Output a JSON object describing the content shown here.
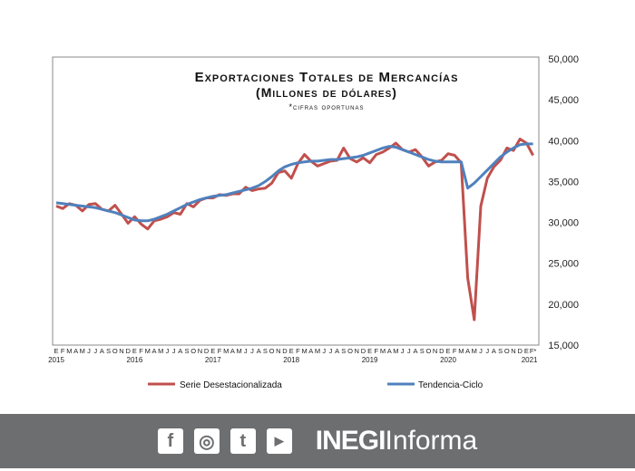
{
  "chart_data": {
    "type": "line",
    "title": "Exportaciones Totales de Mercancías",
    "subtitle": "(Millones de dólares)",
    "note": "*cifras oportunas",
    "month_labels": [
      "E",
      "F",
      "M",
      "A",
      "M",
      "J",
      "J",
      "A",
      "S",
      "O",
      "N",
      "D",
      "E",
      "F",
      "M",
      "A",
      "M",
      "J",
      "J",
      "A",
      "S",
      "O",
      "N",
      "D",
      "E",
      "F",
      "M",
      "A",
      "M",
      "J",
      "J",
      "A",
      "S",
      "O",
      "N",
      "D",
      "E",
      "F",
      "M",
      "A",
      "M",
      "J",
      "J",
      "A",
      "S",
      "O",
      "N",
      "D",
      "E",
      "F",
      "M",
      "A",
      "M",
      "J",
      "J",
      "A",
      "S",
      "O",
      "N",
      "D",
      "E",
      "F",
      "M",
      "A",
      "M",
      "J",
      "J",
      "A",
      "S",
      "O",
      "N",
      "D",
      "E",
      "F*"
    ],
    "year_labels": [
      "2015",
      "2016",
      "2017",
      "2018",
      "2019",
      "2020",
      "2021"
    ],
    "yticks": [
      "15,000",
      "20,000",
      "25,000",
      "30,000",
      "35,000",
      "40,000",
      "45,000",
      "50,000"
    ],
    "ylim": [
      15000,
      50000
    ],
    "legend_position": "bottom",
    "series": [
      {
        "name": "Serie Desestacionalizada",
        "color": "#c0504d",
        "values": [
          32000,
          31700,
          32300,
          32100,
          31400,
          32200,
          32300,
          31600,
          31400,
          32100,
          31000,
          29900,
          30700,
          29800,
          29200,
          30200,
          30400,
          30700,
          31200,
          31000,
          32300,
          31900,
          32700,
          33000,
          33000,
          33400,
          33300,
          33500,
          33500,
          34300,
          33900,
          34100,
          34200,
          34800,
          36100,
          36300,
          35400,
          37200,
          38300,
          37500,
          36900,
          37200,
          37500,
          37600,
          39100,
          37800,
          37400,
          37900,
          37300,
          38300,
          38600,
          39100,
          39700,
          38900,
          38600,
          38900,
          38000,
          36900,
          37400,
          37600,
          38400,
          38200,
          37300,
          23200,
          18100,
          32000,
          35400,
          36800,
          37600,
          39100,
          38800,
          40200,
          39700,
          38200
        ]
      },
      {
        "name": "Tendencia-Ciclo",
        "color": "#4f81bd",
        "values": [
          32400,
          32300,
          32200,
          32100,
          32000,
          31900,
          31800,
          31600,
          31400,
          31200,
          30900,
          30600,
          30300,
          30200,
          30200,
          30400,
          30700,
          31000,
          31400,
          31800,
          32200,
          32500,
          32800,
          33000,
          33200,
          33300,
          33400,
          33600,
          33800,
          34000,
          34200,
          34500,
          35000,
          35600,
          36300,
          36800,
          37100,
          37300,
          37400,
          37500,
          37500,
          37600,
          37700,
          37700,
          37800,
          37900,
          38000,
          38200,
          38500,
          38800,
          39100,
          39300,
          39200,
          38900,
          38600,
          38300,
          38000,
          37700,
          37500,
          37400,
          37400,
          37400,
          37400,
          34200,
          34800,
          35600,
          36400,
          37200,
          38000,
          38600,
          39100,
          39500,
          39600,
          39600
        ]
      }
    ]
  },
  "footer": {
    "social": [
      "f",
      "◎",
      "t",
      "▶"
    ],
    "brand_bold": "INEGI",
    "brand_light": "Informa"
  }
}
